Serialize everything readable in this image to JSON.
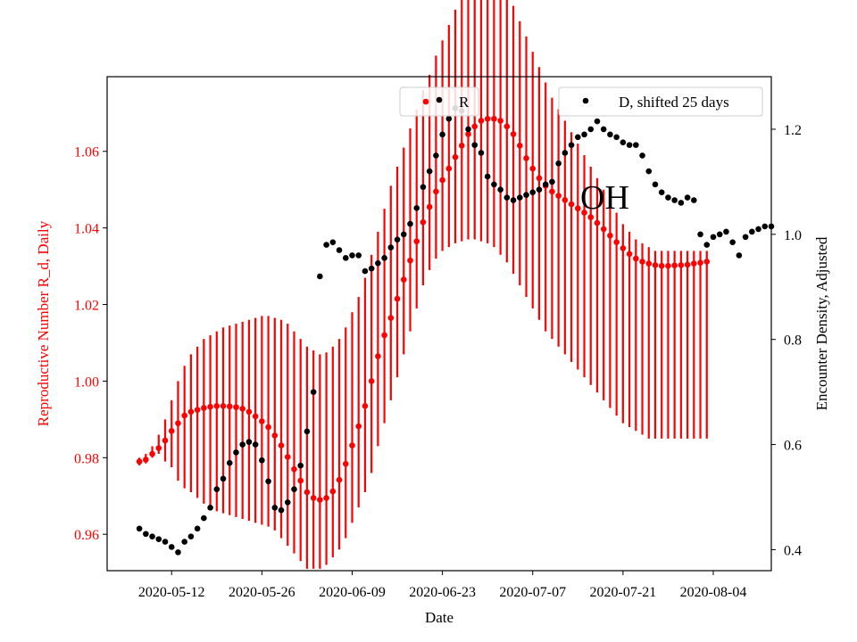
{
  "chart_data": {
    "type": "scatter",
    "annotation": "OH",
    "xlabel": "Date",
    "ylabel_left": "Reproductive Number R_d, Daily",
    "ylabel_right": "Encounter Density, Adjusted",
    "x_ticks": [
      "2020-05-12",
      "2020-05-26",
      "2020-06-09",
      "2020-06-23",
      "2020-07-07",
      "2020-07-21",
      "2020-08-04"
    ],
    "y_left_ticks": [
      "0.96",
      "0.98",
      "1.00",
      "1.02",
      "1.04",
      "1.06"
    ],
    "y_right_ticks": [
      "0.4",
      "0.6",
      "0.8",
      "1.0",
      "1.2"
    ],
    "x_range": [
      "2020-05-02",
      "2020-08-13"
    ],
    "y_left_range": [
      0.9505,
      1.0795
    ],
    "y_right_range": [
      0.36,
      1.3
    ],
    "legend_left": "top-center",
    "legend_right": "top-right",
    "grid": false,
    "colors": {
      "R": "#ff0000",
      "D": "#000000",
      "left_axis": "#ff0000"
    },
    "series": [
      {
        "name": "R",
        "axis": "left",
        "start_date": "2020-05-07",
        "values": [
          0.979,
          0.9795,
          0.981,
          0.9825,
          0.9845,
          0.987,
          0.989,
          0.991,
          0.992,
          0.9925,
          0.993,
          0.9933,
          0.9935,
          0.9935,
          0.9934,
          0.9932,
          0.9928,
          0.992,
          0.9908,
          0.9895,
          0.988,
          0.9858,
          0.9832,
          0.9802,
          0.977,
          0.974,
          0.971,
          0.9695,
          0.969,
          0.9695,
          0.9712,
          0.9742,
          0.9784,
          0.9832,
          0.9882,
          0.9935,
          1.0,
          1.0065,
          1.012,
          1.0165,
          1.0215,
          1.0265,
          1.0315,
          1.0365,
          1.0415,
          1.0455,
          1.0495,
          1.0525,
          1.0555,
          1.0585,
          1.0615,
          1.0645,
          1.0665,
          1.068,
          1.0685,
          1.0685,
          1.068,
          1.0665,
          1.0645,
          1.0615,
          1.0582,
          1.0555,
          1.053,
          1.051,
          1.0495,
          1.0484,
          1.0473,
          1.0462,
          1.0451,
          1.044,
          1.0428,
          1.0413,
          1.0397,
          1.038,
          1.0363,
          1.0347,
          1.0332,
          1.032,
          1.0312,
          1.0307,
          1.0303,
          1.0301,
          1.0301,
          1.0302,
          1.0303,
          1.0304,
          1.0307,
          1.0309,
          1.0312
        ],
        "err_low": [
          0.978,
          0.9785,
          0.98,
          0.981,
          0.979,
          0.9775,
          0.974,
          0.972,
          0.971,
          0.9695,
          0.968,
          0.967,
          0.966,
          0.9655,
          0.965,
          0.9645,
          0.964,
          0.9635,
          0.963,
          0.9625,
          0.962,
          0.961,
          0.959,
          0.957,
          0.955,
          0.953,
          0.951,
          0.951,
          0.951,
          0.952,
          0.954,
          0.956,
          0.959,
          0.963,
          0.967,
          0.971,
          0.976,
          0.983,
          0.989,
          0.995,
          1.001,
          1.007,
          1.013,
          1.019,
          1.025,
          1.029,
          1.032,
          1.034,
          1.035,
          1.036,
          1.0365,
          1.037,
          1.037,
          1.0365,
          1.036,
          1.035,
          1.033,
          1.031,
          1.028,
          1.025,
          1.022,
          1.019,
          1.016,
          1.013,
          1.011,
          1.009,
          1.007,
          1.005,
          1.003,
          1.001,
          0.999,
          0.997,
          0.995,
          0.993,
          0.991,
          0.989,
          0.988,
          0.987,
          0.986,
          0.985,
          0.985,
          0.985,
          0.985,
          0.985,
          0.985,
          0.985,
          0.985,
          0.985,
          0.985
        ],
        "err_high": [
          0.98,
          0.981,
          0.983,
          0.986,
          0.99,
          0.995,
          1.0,
          1.004,
          1.007,
          1.009,
          1.011,
          1.012,
          1.013,
          1.014,
          1.0145,
          1.015,
          1.0155,
          1.016,
          1.0165,
          1.017,
          1.017,
          1.0165,
          1.016,
          1.015,
          1.013,
          1.011,
          1.009,
          1.008,
          1.007,
          1.0075,
          1.009,
          1.011,
          1.014,
          1.018,
          1.022,
          1.027,
          1.033,
          1.039,
          1.045,
          1.051,
          1.056,
          1.061,
          1.066,
          1.071,
          1.076,
          1.08,
          1.085,
          1.089,
          1.093,
          1.097,
          1.101,
          1.104,
          1.106,
          1.107,
          1.107,
          1.106,
          1.104,
          1.101,
          1.098,
          1.094,
          1.09,
          1.086,
          1.082,
          1.078,
          1.074,
          1.071,
          1.068,
          1.065,
          1.062,
          1.059,
          1.056,
          1.053,
          1.05,
          1.047,
          1.044,
          1.041,
          1.039,
          1.037,
          1.036,
          1.035,
          1.034,
          1.034,
          1.034,
          1.034,
          1.034,
          1.034,
          1.034,
          1.034,
          1.034
        ]
      },
      {
        "name": "D, shifted 25 days",
        "axis": "right",
        "start_date": "2020-05-07",
        "values": [
          0.44,
          0.43,
          0.425,
          0.42,
          0.415,
          0.405,
          0.395,
          0.415,
          0.425,
          0.44,
          0.46,
          0.48,
          0.515,
          0.535,
          0.565,
          0.585,
          0.6,
          0.605,
          0.6,
          0.57,
          0.53,
          0.48,
          0.475,
          0.49,
          0.515,
          0.56,
          0.625,
          0.7,
          0.92,
          0.98,
          0.985,
          0.97,
          0.955,
          0.96,
          0.96,
          0.93,
          0.935,
          0.945,
          0.955,
          0.975,
          0.99,
          1.0,
          1.02,
          1.05,
          1.09,
          1.12,
          1.15,
          1.19,
          1.22,
          1.24,
          1.235,
          1.2,
          1.17,
          1.155,
          1.11,
          1.095,
          1.085,
          1.07,
          1.065,
          1.07,
          1.075,
          1.08,
          1.085,
          1.095,
          1.1,
          1.135,
          1.155,
          1.17,
          1.185,
          1.19,
          1.2,
          1.215,
          1.2,
          1.19,
          1.185,
          1.175,
          1.17,
          1.17,
          1.15,
          1.12,
          1.095,
          1.08,
          1.07,
          1.065,
          1.06,
          1.07,
          1.065,
          1.0,
          0.98,
          0.995,
          1.0,
          1.005,
          0.985,
          0.96,
          0.995,
          1.005,
          1.01,
          1.015,
          1.015
        ]
      }
    ]
  }
}
